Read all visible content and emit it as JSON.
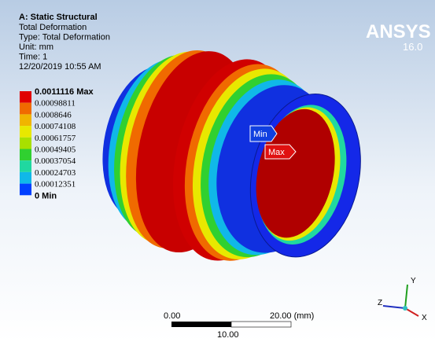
{
  "header": {
    "title": "A: Static Structural",
    "lines": [
      "Total Deformation",
      "Type: Total Deformation",
      "Unit: mm",
      "Time: 1",
      "12/20/2019 10:55 AM"
    ]
  },
  "logo": {
    "name": "ANSYS",
    "version": "16.0"
  },
  "legend": {
    "labels": [
      "0.0011116 Max",
      "0.00098811",
      "0.0008646",
      "0.00074108",
      "0.00061757",
      "0.00049405",
      "0.00037054",
      "0.00024703",
      "0.00012351",
      "0 Min"
    ],
    "colors": [
      "#e00000",
      "#f06a00",
      "#f0b400",
      "#e8e800",
      "#a8e000",
      "#30d030",
      "#20d8a0",
      "#10b8e8",
      "#0040ff"
    ]
  },
  "probes": {
    "min": "Min",
    "max": "Max"
  },
  "scale_bar": {
    "start": "0.00",
    "end": "20.00 (mm)",
    "middle": "10.00"
  },
  "triad": {
    "y": "Y",
    "x": "X",
    "z": "Z"
  }
}
